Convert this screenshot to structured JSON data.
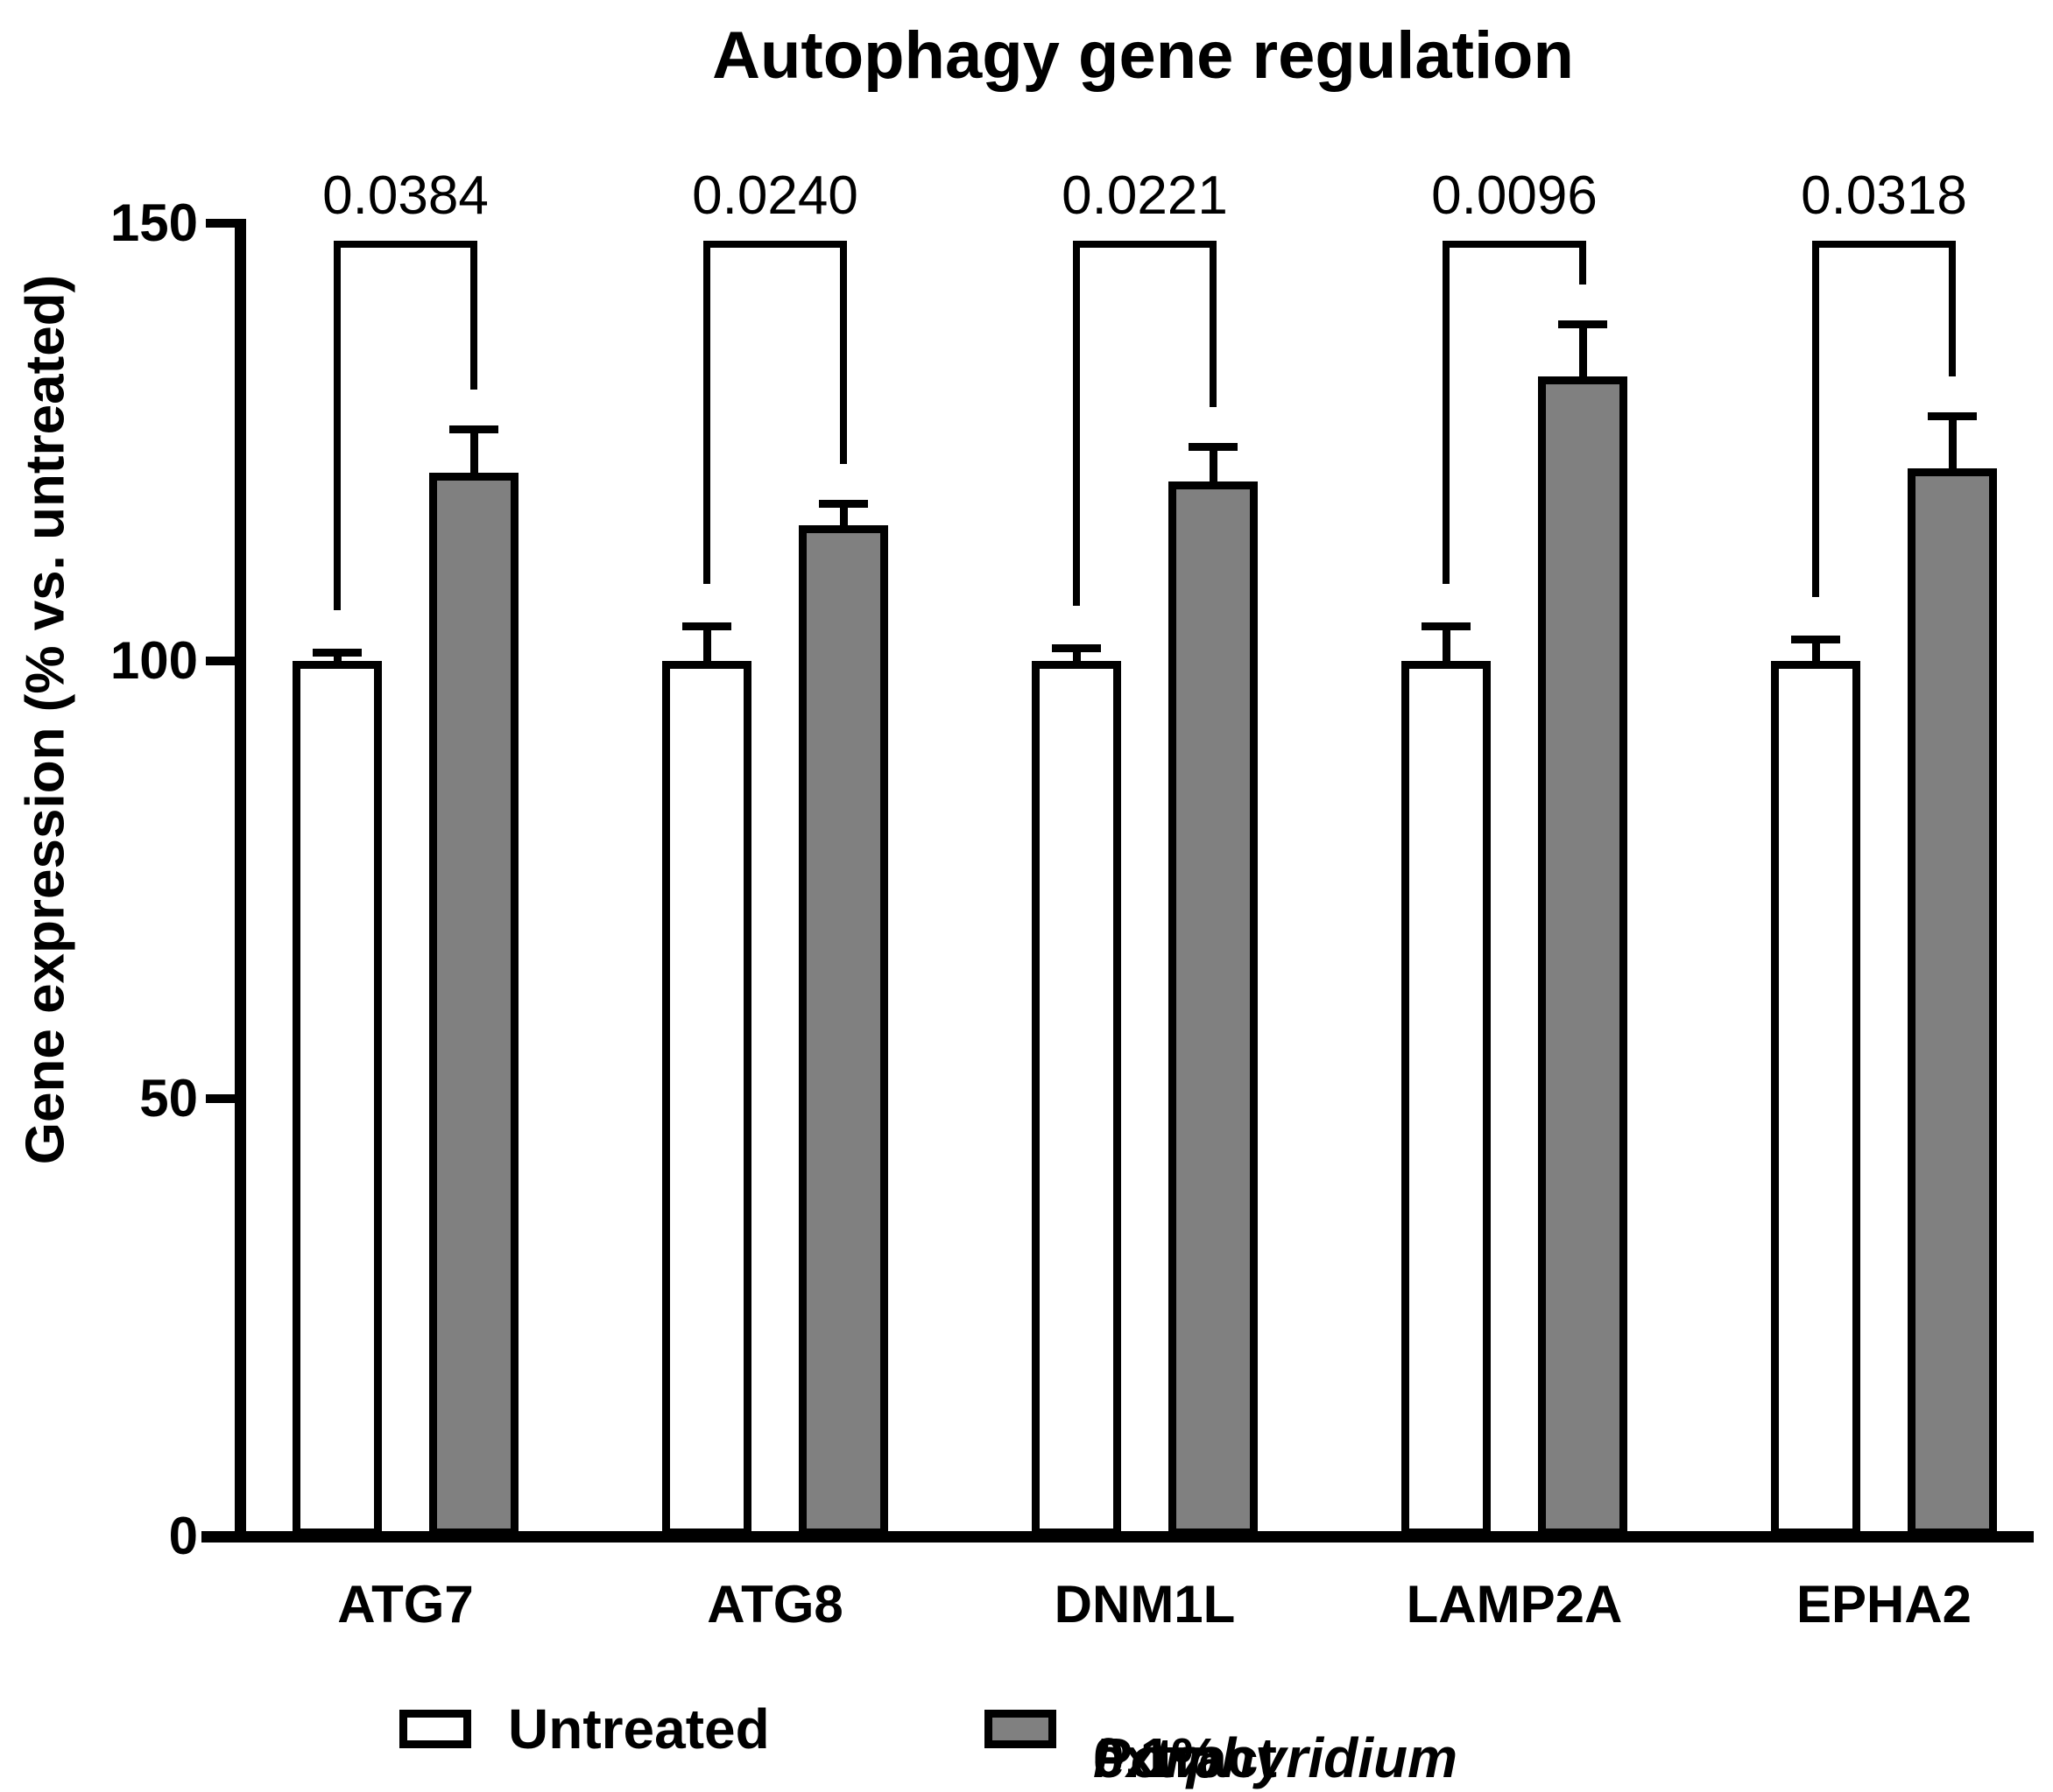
{
  "chart_data": {
    "type": "bar",
    "title": "Autophagy gene regulation",
    "xlabel": "",
    "ylabel": "Gene expression (% vs. untreated)",
    "ylim": [
      0,
      150
    ],
    "yticks": [
      0,
      50,
      100,
      150
    ],
    "grid": false,
    "legend_position": "bottom",
    "categories": [
      "ATG7",
      "ATG8",
      "DNM1L",
      "LAMP2A",
      "EPHA2"
    ],
    "series": [
      {
        "name": "Untreated",
        "fill": "#ffffff",
        "outline": "#000000",
        "values": [
          100,
          100,
          100,
          100,
          100
        ],
        "error_up": [
          1,
          4,
          1.5,
          4,
          2.5
        ]
      },
      {
        "name": "0.1% Porphyridium extract",
        "fill": "#808080",
        "outline": "#000000",
        "values": [
          121.5,
          115.5,
          120.5,
          132.5,
          122
        ],
        "error_up": [
          5,
          2.5,
          4,
          6,
          6
        ]
      }
    ],
    "p_values": [
      "0.0384",
      "0.0240",
      "0.0221",
      "0.0096",
      "0.0318"
    ]
  },
  "legend": {
    "extract": {
      "prefix": "0.1% ",
      "italic": "Porphyridium",
      "suffix": " extract"
    }
  }
}
